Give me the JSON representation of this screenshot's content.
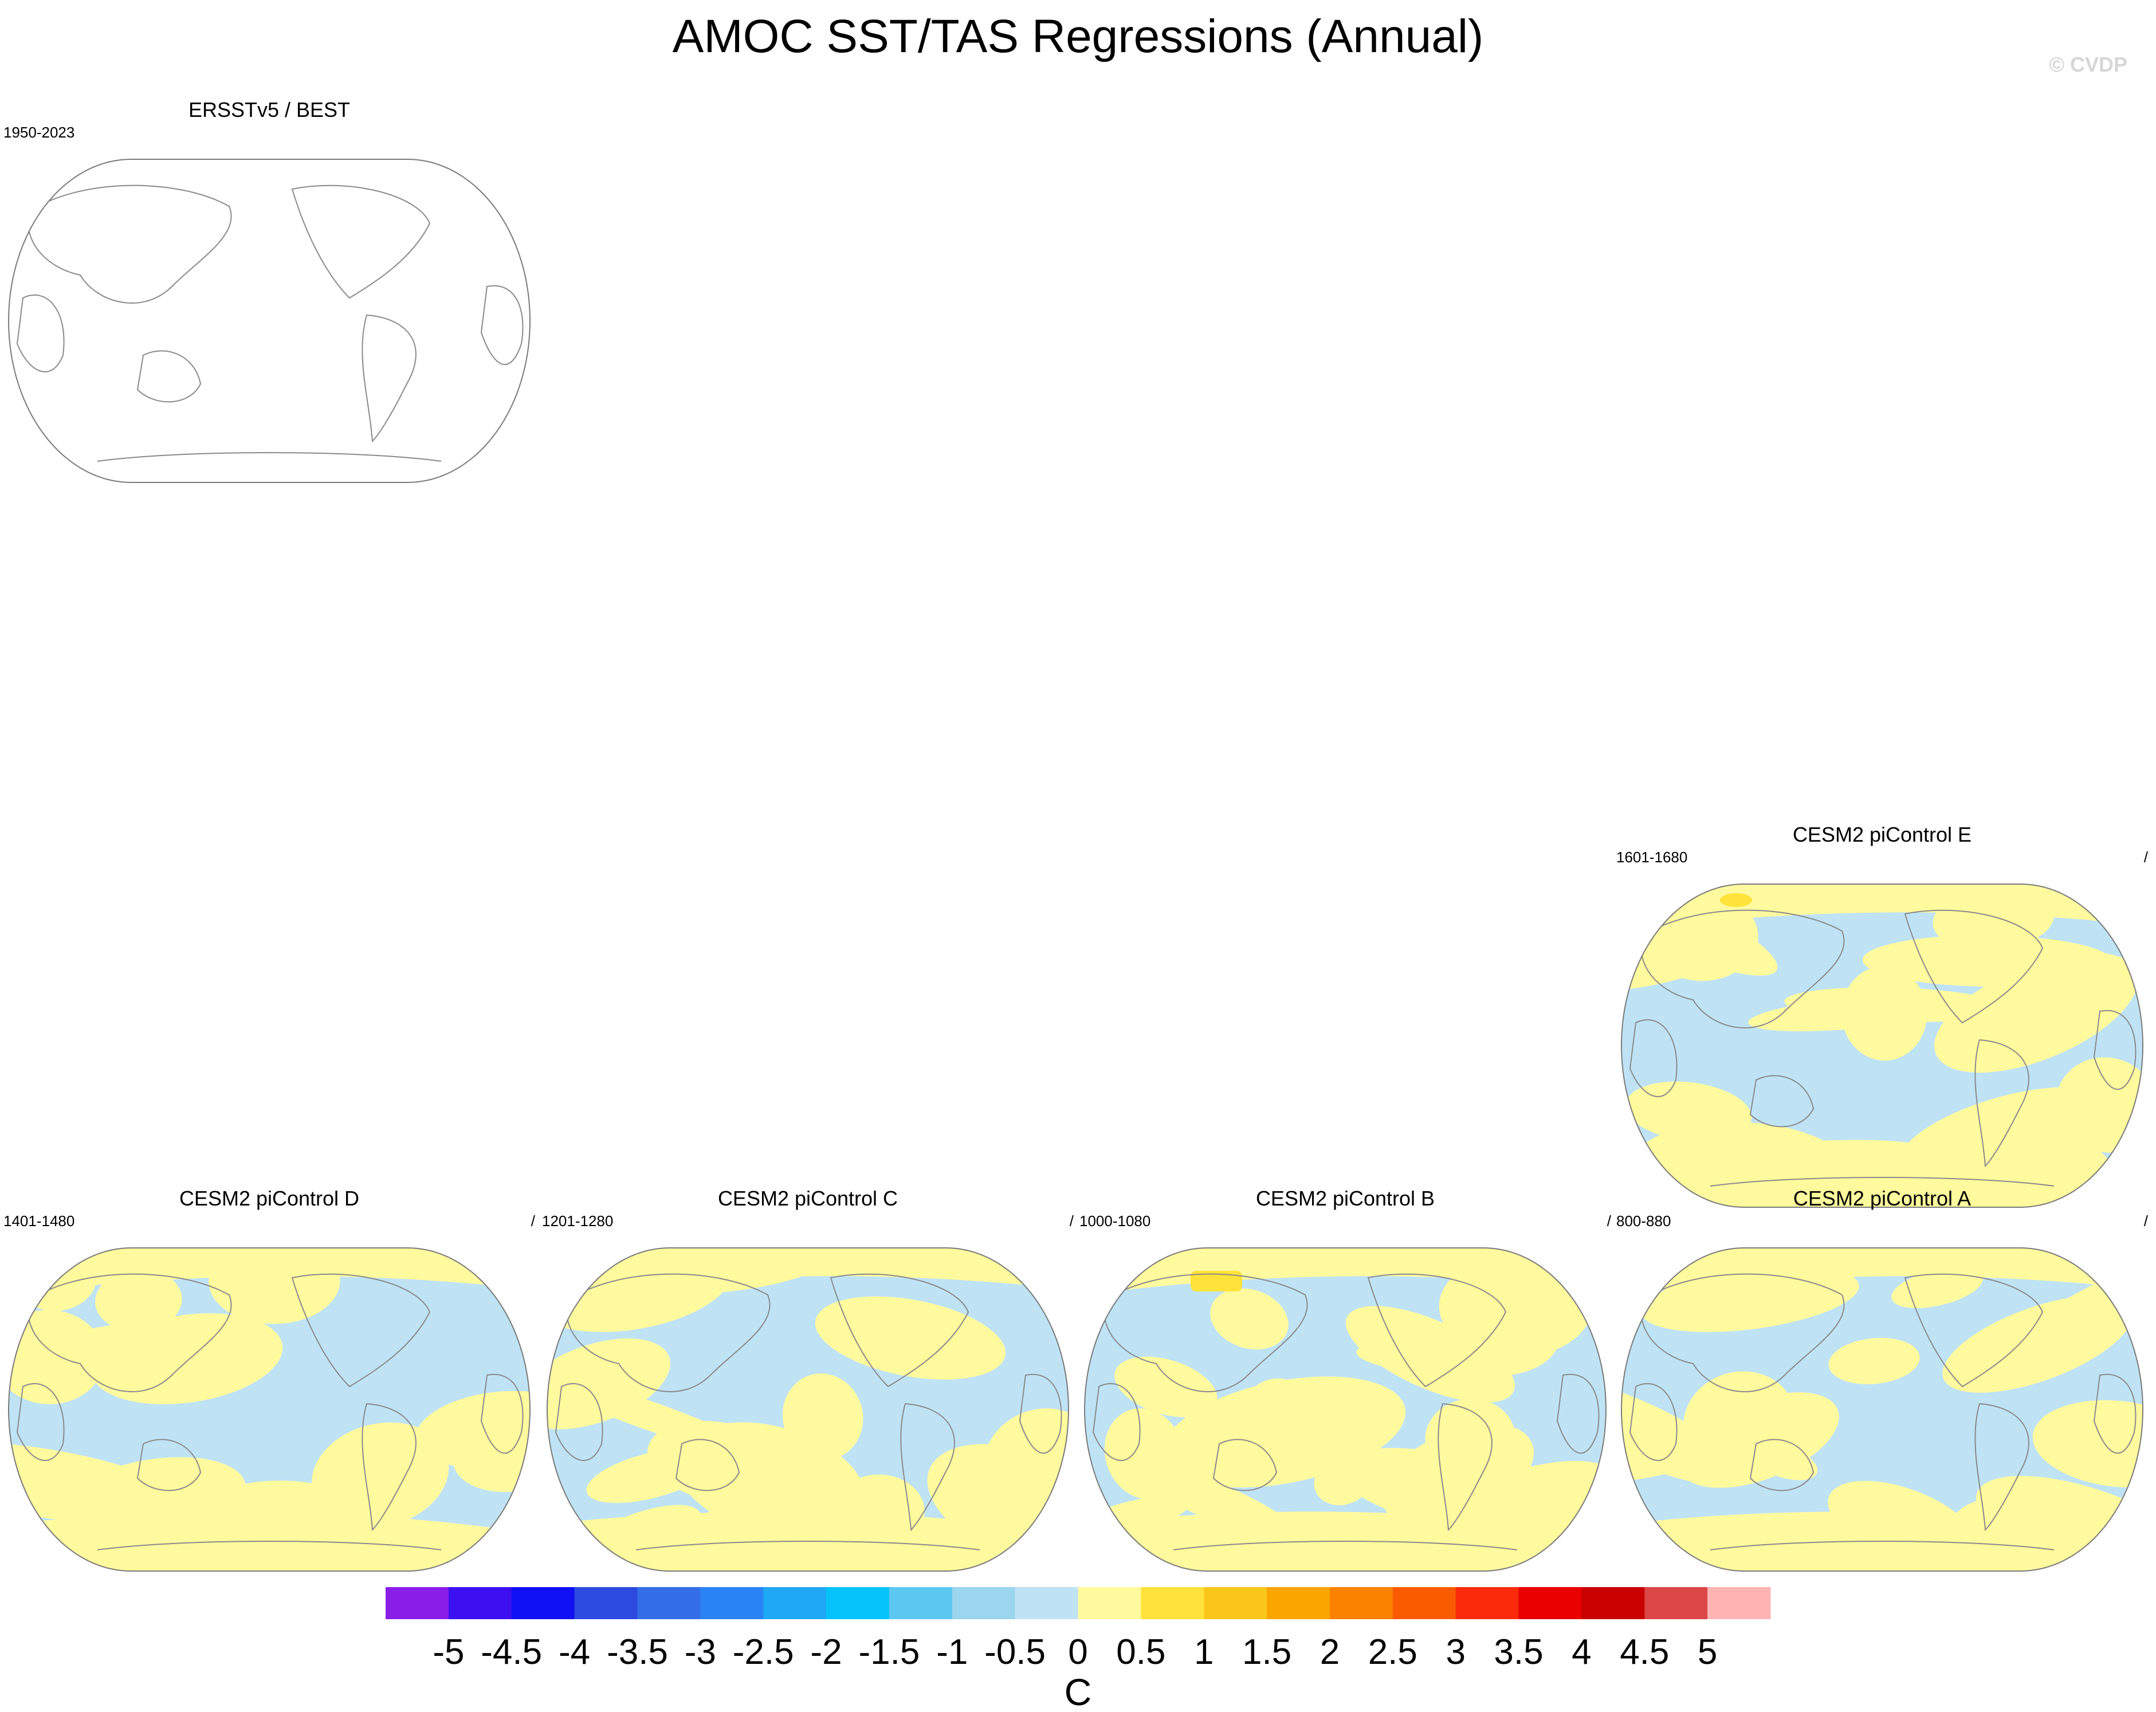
{
  "title": "AMOC SST/TAS Regressions (Annual)",
  "watermark": "© CVDP",
  "chart_data": {
    "type": "map",
    "projection": "Robinson (Pacific-centered)",
    "panels": [
      {
        "id": "obs",
        "title": "ERSSTv5 / BEST",
        "years": "1950-2023",
        "right_label": "",
        "filled": false
      },
      {
        "id": "E",
        "title": "CESM2 piControl E",
        "years": "1601-1680",
        "right_label": "/",
        "filled": true
      },
      {
        "id": "D",
        "title": "CESM2 piControl D",
        "years": "1401-1480",
        "right_label": "/",
        "filled": true
      },
      {
        "id": "C",
        "title": "CESM2 piControl C",
        "years": "1201-1280",
        "right_label": "/",
        "filled": true
      },
      {
        "id": "B",
        "title": "CESM2 piControl B",
        "years": "1000-1080",
        "right_label": "/",
        "filled": true
      },
      {
        "id": "A",
        "title": "CESM2 piControl A",
        "years": "800-880",
        "right_label": "/",
        "filled": true
      }
    ],
    "colorbar": {
      "unit": "C",
      "ticks": [
        "-5",
        "-4.5",
        "-4",
        "-3.5",
        "-3",
        "-2.5",
        "-2",
        "-1.5",
        "-1",
        "-0.5",
        "0",
        "0.5",
        "1",
        "1.5",
        "2",
        "2.5",
        "3",
        "3.5",
        "4",
        "4.5",
        "5"
      ],
      "colors": [
        "#8a1ee8",
        "#3d10f2",
        "#1010f5",
        "#2d4ae0",
        "#336de8",
        "#2a83f5",
        "#1ea8f5",
        "#05c3fa",
        "#5cc8f2",
        "#9bd5ee",
        "#bfe3f5",
        "#fffa9e",
        "#ffe23a",
        "#fac61a",
        "#faa500",
        "#fa8200",
        "#fa5a00",
        "#fa2a0a",
        "#eb0000",
        "#c80000",
        "#dc4646",
        "#ffb4b4"
      ]
    }
  }
}
